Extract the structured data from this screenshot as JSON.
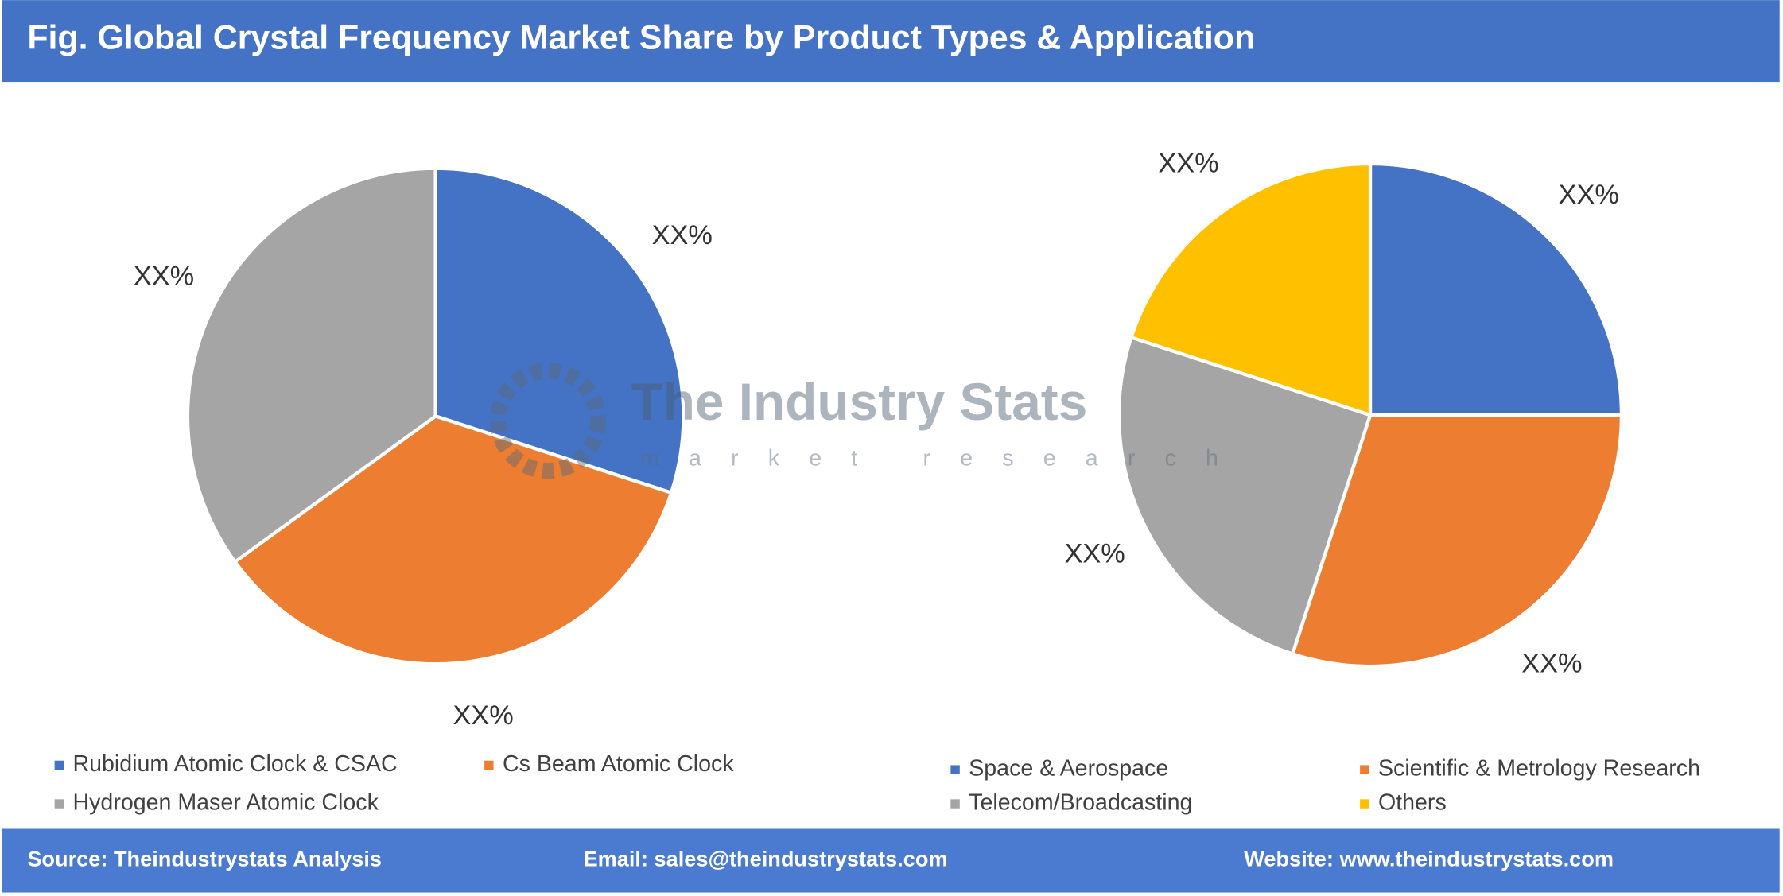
{
  "title": "Fig. Global Crystal Frequency Market Share by Product Types & Application",
  "watermark": {
    "name": "The Industry Stats",
    "tagline": "market research"
  },
  "footer": {
    "source": "Source: Theindustrystats Analysis",
    "email": "Email: sales@theindustrystats.com",
    "website": "Website: www.theindustrystats.com"
  },
  "chart_data": [
    {
      "type": "pie",
      "categories": [
        "Rubidium Atomic Clock & CSAC",
        "Cs Beam Atomic Clock",
        "Hydrogen Maser Atomic Clock"
      ],
      "values": [
        30,
        35,
        35
      ],
      "value_labels": [
        "XX%",
        "XX%",
        "XX%"
      ],
      "colors": [
        "#4472c4",
        "#ed7d31",
        "#a5a5a5"
      ]
    },
    {
      "type": "pie",
      "categories": [
        "Space & Aerospace",
        "Scientific & Metrology Research",
        "Telecom/Broadcasting",
        "Others"
      ],
      "values": [
        25,
        30,
        25,
        20
      ],
      "value_labels": [
        "XX%",
        "XX%",
        "XX%",
        "XX%"
      ],
      "colors": [
        "#4472c4",
        "#ed7d31",
        "#a5a5a5",
        "#ffc000"
      ]
    }
  ]
}
